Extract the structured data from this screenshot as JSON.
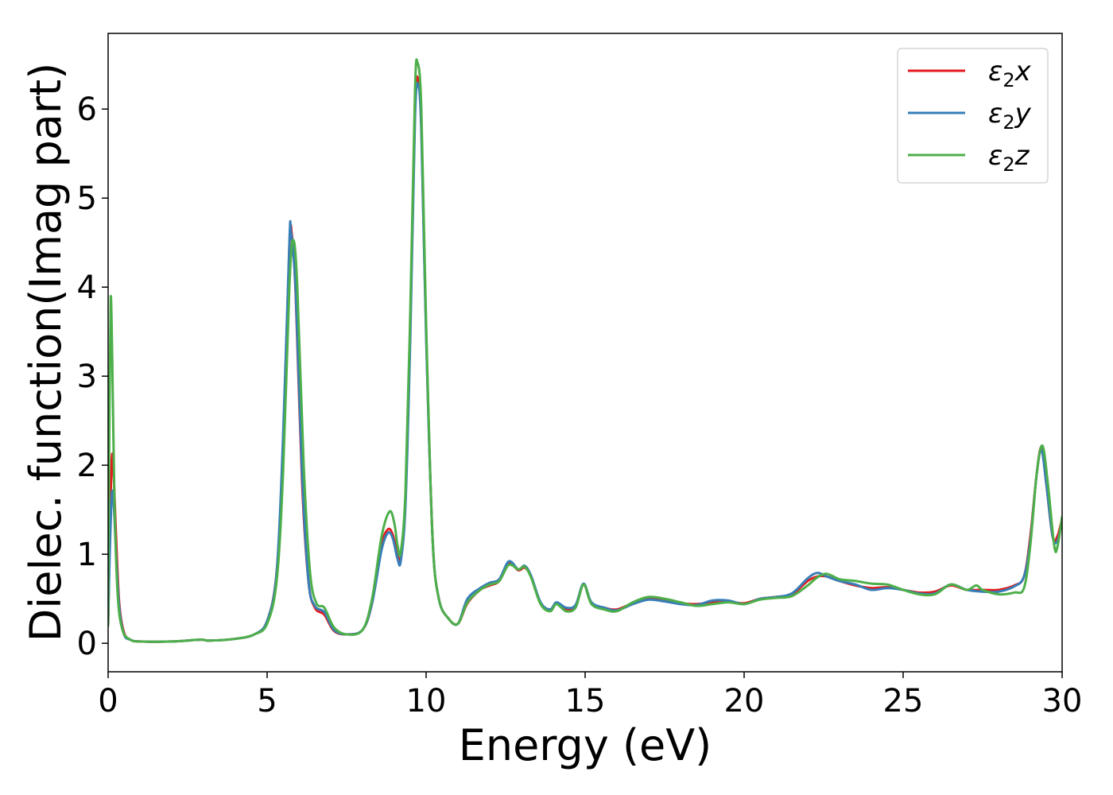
{
  "chart_data": {
    "type": "line",
    "xlabel": "Energy (eV)",
    "ylabel": "Dielec. function(Imag part)",
    "xlim": [
      0,
      30
    ],
    "ylim": [
      -0.32,
      6.85
    ],
    "x_ticks": [
      0,
      5,
      10,
      15,
      20,
      25,
      30
    ],
    "y_ticks": [
      0,
      1,
      2,
      3,
      4,
      5,
      6
    ],
    "grid": false,
    "legend": "top-right",
    "series": [
      {
        "name": "ε₂x",
        "legend_base": "ε",
        "legend_sub": "2",
        "legend_axis": "x",
        "color": "#e41a1c",
        "points": [
          [
            0,
            0.2
          ],
          [
            0.05,
            1.2
          ],
          [
            0.12,
            2.1
          ],
          [
            0.18,
            1.85
          ],
          [
            0.25,
            1.2
          ],
          [
            0.35,
            0.45
          ],
          [
            0.5,
            0.12
          ],
          [
            0.7,
            0.04
          ],
          [
            1,
            0.02
          ],
          [
            2,
            0.02
          ],
          [
            2.9,
            0.04
          ],
          [
            3.2,
            0.03
          ],
          [
            4,
            0.05
          ],
          [
            4.6,
            0.1
          ],
          [
            5.0,
            0.25
          ],
          [
            5.3,
            0.8
          ],
          [
            5.5,
            2.2
          ],
          [
            5.7,
            4.45
          ],
          [
            5.78,
            4.58
          ],
          [
            5.9,
            3.9
          ],
          [
            6.1,
            1.8
          ],
          [
            6.3,
            0.7
          ],
          [
            6.5,
            0.4
          ],
          [
            6.8,
            0.32
          ],
          [
            7.1,
            0.14
          ],
          [
            7.5,
            0.1
          ],
          [
            8.0,
            0.15
          ],
          [
            8.3,
            0.45
          ],
          [
            8.6,
            1.1
          ],
          [
            8.8,
            1.28
          ],
          [
            8.95,
            1.22
          ],
          [
            9.1,
            1.0
          ],
          [
            9.2,
            0.95
          ],
          [
            9.35,
            1.6
          ],
          [
            9.5,
            3.5
          ],
          [
            9.65,
            6.0
          ],
          [
            9.75,
            6.33
          ],
          [
            9.85,
            5.8
          ],
          [
            10.0,
            3.5
          ],
          [
            10.2,
            1.2
          ],
          [
            10.4,
            0.5
          ],
          [
            10.7,
            0.28
          ],
          [
            11.0,
            0.22
          ],
          [
            11.3,
            0.45
          ],
          [
            11.7,
            0.6
          ],
          [
            12.0,
            0.65
          ],
          [
            12.3,
            0.7
          ],
          [
            12.6,
            0.9
          ],
          [
            12.9,
            0.82
          ],
          [
            13.1,
            0.85
          ],
          [
            13.3,
            0.75
          ],
          [
            13.6,
            0.45
          ],
          [
            13.9,
            0.38
          ],
          [
            14.1,
            0.45
          ],
          [
            14.4,
            0.38
          ],
          [
            14.7,
            0.42
          ],
          [
            14.95,
            0.66
          ],
          [
            15.2,
            0.45
          ],
          [
            15.6,
            0.4
          ],
          [
            16.0,
            0.38
          ],
          [
            16.5,
            0.45
          ],
          [
            17.0,
            0.5
          ],
          [
            17.5,
            0.48
          ],
          [
            18,
            0.45
          ],
          [
            18.5,
            0.44
          ],
          [
            19,
            0.46
          ],
          [
            19.5,
            0.47
          ],
          [
            20,
            0.45
          ],
          [
            20.5,
            0.5
          ],
          [
            21,
            0.52
          ],
          [
            21.5,
            0.55
          ],
          [
            22,
            0.7
          ],
          [
            22.3,
            0.75
          ],
          [
            22.6,
            0.75
          ],
          [
            23,
            0.7
          ],
          [
            23.5,
            0.65
          ],
          [
            24,
            0.62
          ],
          [
            24.5,
            0.63
          ],
          [
            25,
            0.6
          ],
          [
            25.5,
            0.57
          ],
          [
            26,
            0.58
          ],
          [
            26.5,
            0.65
          ],
          [
            27,
            0.6
          ],
          [
            27.5,
            0.6
          ],
          [
            28,
            0.6
          ],
          [
            28.5,
            0.65
          ],
          [
            28.8,
            0.75
          ],
          [
            29.0,
            1.2
          ],
          [
            29.2,
            1.9
          ],
          [
            29.35,
            2.2
          ],
          [
            29.5,
            1.8
          ],
          [
            29.7,
            1.2
          ],
          [
            29.85,
            1.2
          ],
          [
            30,
            1.4
          ]
        ]
      },
      {
        "name": "ε₂y",
        "legend_base": "ε",
        "legend_sub": "2",
        "legend_axis": "y",
        "color": "#377eb8",
        "points": [
          [
            0,
            0.2
          ],
          [
            0.05,
            1.0
          ],
          [
            0.12,
            1.68
          ],
          [
            0.18,
            1.55
          ],
          [
            0.25,
            1.0
          ],
          [
            0.35,
            0.4
          ],
          [
            0.5,
            0.1
          ],
          [
            0.7,
            0.04
          ],
          [
            1,
            0.02
          ],
          [
            2,
            0.02
          ],
          [
            2.9,
            0.04
          ],
          [
            3.2,
            0.03
          ],
          [
            4,
            0.05
          ],
          [
            4.6,
            0.1
          ],
          [
            5.0,
            0.25
          ],
          [
            5.3,
            0.8
          ],
          [
            5.5,
            2.3
          ],
          [
            5.7,
            4.5
          ],
          [
            5.75,
            4.62
          ],
          [
            5.9,
            3.95
          ],
          [
            6.1,
            1.9
          ],
          [
            6.3,
            0.7
          ],
          [
            6.5,
            0.42
          ],
          [
            6.8,
            0.35
          ],
          [
            7.1,
            0.15
          ],
          [
            7.5,
            0.1
          ],
          [
            8.0,
            0.15
          ],
          [
            8.3,
            0.45
          ],
          [
            8.6,
            1.05
          ],
          [
            8.8,
            1.24
          ],
          [
            8.95,
            1.18
          ],
          [
            9.1,
            0.95
          ],
          [
            9.2,
            0.92
          ],
          [
            9.35,
            1.55
          ],
          [
            9.5,
            3.4
          ],
          [
            9.65,
            5.9
          ],
          [
            9.75,
            6.27
          ],
          [
            9.85,
            5.75
          ],
          [
            10.0,
            3.45
          ],
          [
            10.2,
            1.2
          ],
          [
            10.4,
            0.5
          ],
          [
            10.7,
            0.28
          ],
          [
            11.0,
            0.22
          ],
          [
            11.3,
            0.5
          ],
          [
            11.7,
            0.62
          ],
          [
            12.0,
            0.68
          ],
          [
            12.3,
            0.72
          ],
          [
            12.6,
            0.92
          ],
          [
            12.9,
            0.83
          ],
          [
            13.1,
            0.87
          ],
          [
            13.3,
            0.76
          ],
          [
            13.6,
            0.46
          ],
          [
            13.9,
            0.38
          ],
          [
            14.1,
            0.46
          ],
          [
            14.4,
            0.4
          ],
          [
            14.7,
            0.43
          ],
          [
            14.95,
            0.67
          ],
          [
            15.2,
            0.46
          ],
          [
            15.6,
            0.4
          ],
          [
            16.0,
            0.37
          ],
          [
            16.5,
            0.44
          ],
          [
            17.0,
            0.49
          ],
          [
            17.5,
            0.47
          ],
          [
            18,
            0.44
          ],
          [
            18.5,
            0.43
          ],
          [
            19,
            0.48
          ],
          [
            19.5,
            0.48
          ],
          [
            20,
            0.44
          ],
          [
            20.5,
            0.5
          ],
          [
            21,
            0.52
          ],
          [
            21.5,
            0.56
          ],
          [
            22,
            0.73
          ],
          [
            22.3,
            0.79
          ],
          [
            22.6,
            0.75
          ],
          [
            23,
            0.7
          ],
          [
            23.5,
            0.66
          ],
          [
            24,
            0.6
          ],
          [
            24.5,
            0.62
          ],
          [
            25,
            0.6
          ],
          [
            25.5,
            0.56
          ],
          [
            26,
            0.56
          ],
          [
            26.5,
            0.66
          ],
          [
            27,
            0.6
          ],
          [
            27.5,
            0.58
          ],
          [
            28,
            0.58
          ],
          [
            28.5,
            0.64
          ],
          [
            28.8,
            0.75
          ],
          [
            29.0,
            1.15
          ],
          [
            29.2,
            1.9
          ],
          [
            29.35,
            2.17
          ],
          [
            29.5,
            1.8
          ],
          [
            29.7,
            1.2
          ],
          [
            29.85,
            1.15
          ],
          [
            30,
            1.38
          ]
        ]
      },
      {
        "name": "ε₂z",
        "legend_base": "ε",
        "legend_sub": "2",
        "legend_axis": "z",
        "color": "#4daf4a",
        "points": [
          [
            0,
            0.2
          ],
          [
            0.04,
            2.5
          ],
          [
            0.08,
            3.88
          ],
          [
            0.13,
            3.2
          ],
          [
            0.2,
            1.6
          ],
          [
            0.3,
            0.55
          ],
          [
            0.45,
            0.15
          ],
          [
            0.7,
            0.04
          ],
          [
            1,
            0.02
          ],
          [
            2,
            0.02
          ],
          [
            2.9,
            0.04
          ],
          [
            3.2,
            0.03
          ],
          [
            4,
            0.05
          ],
          [
            4.6,
            0.1
          ],
          [
            5.0,
            0.22
          ],
          [
            5.3,
            0.7
          ],
          [
            5.5,
            1.9
          ],
          [
            5.7,
            4.0
          ],
          [
            5.82,
            4.53
          ],
          [
            5.95,
            4.0
          ],
          [
            6.15,
            2.0
          ],
          [
            6.35,
            0.8
          ],
          [
            6.55,
            0.45
          ],
          [
            6.8,
            0.4
          ],
          [
            7.1,
            0.18
          ],
          [
            7.5,
            0.1
          ],
          [
            8.0,
            0.15
          ],
          [
            8.3,
            0.5
          ],
          [
            8.6,
            1.2
          ],
          [
            8.85,
            1.48
          ],
          [
            9.0,
            1.35
          ],
          [
            9.1,
            1.1
          ],
          [
            9.2,
            1.02
          ],
          [
            9.35,
            1.7
          ],
          [
            9.5,
            3.7
          ],
          [
            9.65,
            6.2
          ],
          [
            9.73,
            6.52
          ],
          [
            9.85,
            6.0
          ],
          [
            10.0,
            3.6
          ],
          [
            10.2,
            1.2
          ],
          [
            10.4,
            0.5
          ],
          [
            10.7,
            0.28
          ],
          [
            11.0,
            0.22
          ],
          [
            11.3,
            0.46
          ],
          [
            11.7,
            0.6
          ],
          [
            12.0,
            0.66
          ],
          [
            12.3,
            0.7
          ],
          [
            12.6,
            0.88
          ],
          [
            12.9,
            0.83
          ],
          [
            13.1,
            0.86
          ],
          [
            13.3,
            0.74
          ],
          [
            13.6,
            0.44
          ],
          [
            13.9,
            0.36
          ],
          [
            14.1,
            0.44
          ],
          [
            14.4,
            0.36
          ],
          [
            14.7,
            0.4
          ],
          [
            14.95,
            0.66
          ],
          [
            15.2,
            0.44
          ],
          [
            15.6,
            0.38
          ],
          [
            16.0,
            0.36
          ],
          [
            16.5,
            0.46
          ],
          [
            17.0,
            0.52
          ],
          [
            17.5,
            0.5
          ],
          [
            18,
            0.46
          ],
          [
            18.5,
            0.42
          ],
          [
            19,
            0.44
          ],
          [
            19.5,
            0.46
          ],
          [
            20,
            0.44
          ],
          [
            20.5,
            0.49
          ],
          [
            21,
            0.51
          ],
          [
            21.5,
            0.53
          ],
          [
            22,
            0.65
          ],
          [
            22.3,
            0.74
          ],
          [
            22.6,
            0.78
          ],
          [
            23,
            0.72
          ],
          [
            23.5,
            0.7
          ],
          [
            24,
            0.67
          ],
          [
            24.5,
            0.66
          ],
          [
            25,
            0.6
          ],
          [
            25.5,
            0.55
          ],
          [
            26,
            0.55
          ],
          [
            26.5,
            0.66
          ],
          [
            27,
            0.6
          ],
          [
            27.3,
            0.65
          ],
          [
            27.5,
            0.6
          ],
          [
            28,
            0.55
          ],
          [
            28.5,
            0.57
          ],
          [
            28.8,
            0.62
          ],
          [
            29.0,
            1.1
          ],
          [
            29.2,
            1.9
          ],
          [
            29.38,
            2.22
          ],
          [
            29.55,
            1.8
          ],
          [
            29.75,
            1.1
          ],
          [
            29.85,
            1.08
          ],
          [
            30,
            1.42
          ]
        ]
      }
    ]
  }
}
